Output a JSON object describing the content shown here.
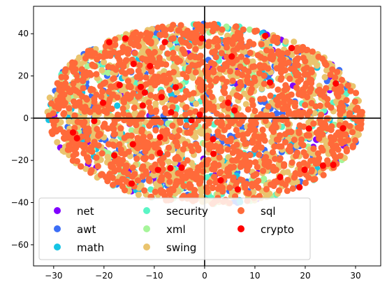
{
  "chart_data": {
    "type": "scatter",
    "title": "",
    "xlabel": "",
    "ylabel": "",
    "xlim": [
      -34,
      35
    ],
    "ylim": [
      -70,
      53
    ],
    "x_ticks": [
      -30,
      -20,
      -10,
      0,
      10,
      20,
      30
    ],
    "y_ticks": [
      -60,
      -40,
      -20,
      0,
      20,
      40
    ],
    "x_tick_labels": [
      "−30",
      "−20",
      "−10",
      "0",
      "10",
      "20",
      "30"
    ],
    "y_tick_labels": [
      "−60",
      "−40",
      "−20",
      "0",
      "20",
      "40"
    ],
    "grid": false,
    "zero_lines": true,
    "legend_position": "lower-left",
    "legend_columns": 3,
    "cluster": {
      "center": [
        0,
        2
      ],
      "semi_axis_x": 32,
      "semi_axis_y": 44,
      "tilt_deg": 18
    },
    "series": [
      {
        "name": "net",
        "color": "#8000ff",
        "count": 70
      },
      {
        "name": "awt",
        "color": "#3c6ef6",
        "count": 230
      },
      {
        "name": "math",
        "color": "#16c4e4",
        "count": 110
      },
      {
        "name": "security",
        "color": "#5af5c5",
        "count": 110
      },
      {
        "name": "xml",
        "color": "#a6f59a",
        "count": 150
      },
      {
        "name": "swing",
        "color": "#eac46e",
        "count": 950
      },
      {
        "name": "sql",
        "color": "#ff6a3a",
        "count": 1300
      },
      {
        "name": "crypto",
        "color": "#ff0000",
        "count": 45
      }
    ]
  }
}
